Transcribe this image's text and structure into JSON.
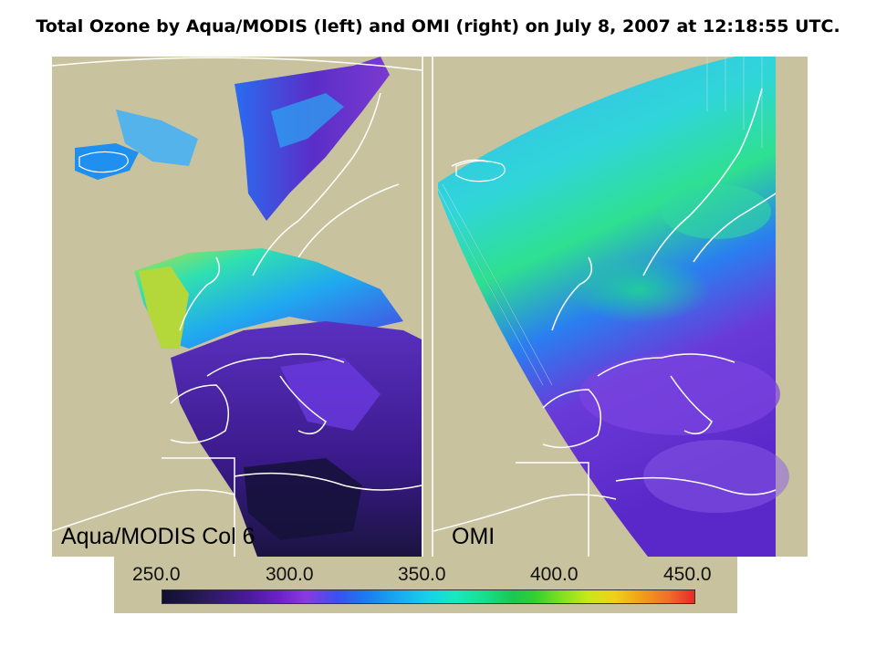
{
  "title": "Total Ozone by Aqua/MODIS (left) and OMI (right) on July 8, 2007 at 12:18:55 UTC.",
  "panels": {
    "left_label": "Aqua/MODIS Col 6",
    "right_label": "OMI"
  },
  "colorbar": {
    "ticks": [
      "250.0",
      "300.0",
      "350.0",
      "400.0",
      "450.0"
    ],
    "min": 250,
    "max": 450
  },
  "colors": {
    "land_background": "#c9c29e",
    "coastline": "#ffffff"
  }
}
